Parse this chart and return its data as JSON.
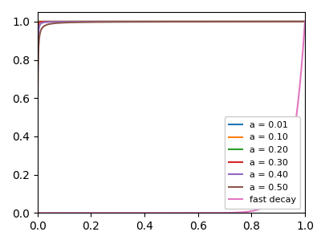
{
  "series": [
    {
      "label": "a = 0.01",
      "a": 0.01,
      "color": "#1f77b4"
    },
    {
      "label": "a = 0.10",
      "a": 0.1,
      "color": "#ff7f0e"
    },
    {
      "label": "a = 0.20",
      "a": 0.2,
      "color": "#2ca02c"
    },
    {
      "label": "a = 0.30",
      "a": 0.3,
      "color": "#d62728"
    },
    {
      "label": "a = 0.40",
      "a": 0.4,
      "color": "#9467bd"
    },
    {
      "label": "a = 0.50",
      "a": 0.5,
      "color": "#8c564b"
    },
    {
      "label": "fast decay",
      "a": -1.0,
      "color": "#e377c2",
      "fast": true
    }
  ],
  "n_points": 1000,
  "xlim": [
    0.0,
    1.0
  ],
  "ylim": [
    0.0,
    1.05
  ],
  "xticks": [
    0.0,
    0.2,
    0.4,
    0.6,
    0.8,
    1.0
  ],
  "yticks": [
    0.0,
    0.2,
    0.4,
    0.6,
    0.8,
    1.0
  ],
  "figsize": [
    4.06,
    3.04
  ],
  "dpi": 100
}
